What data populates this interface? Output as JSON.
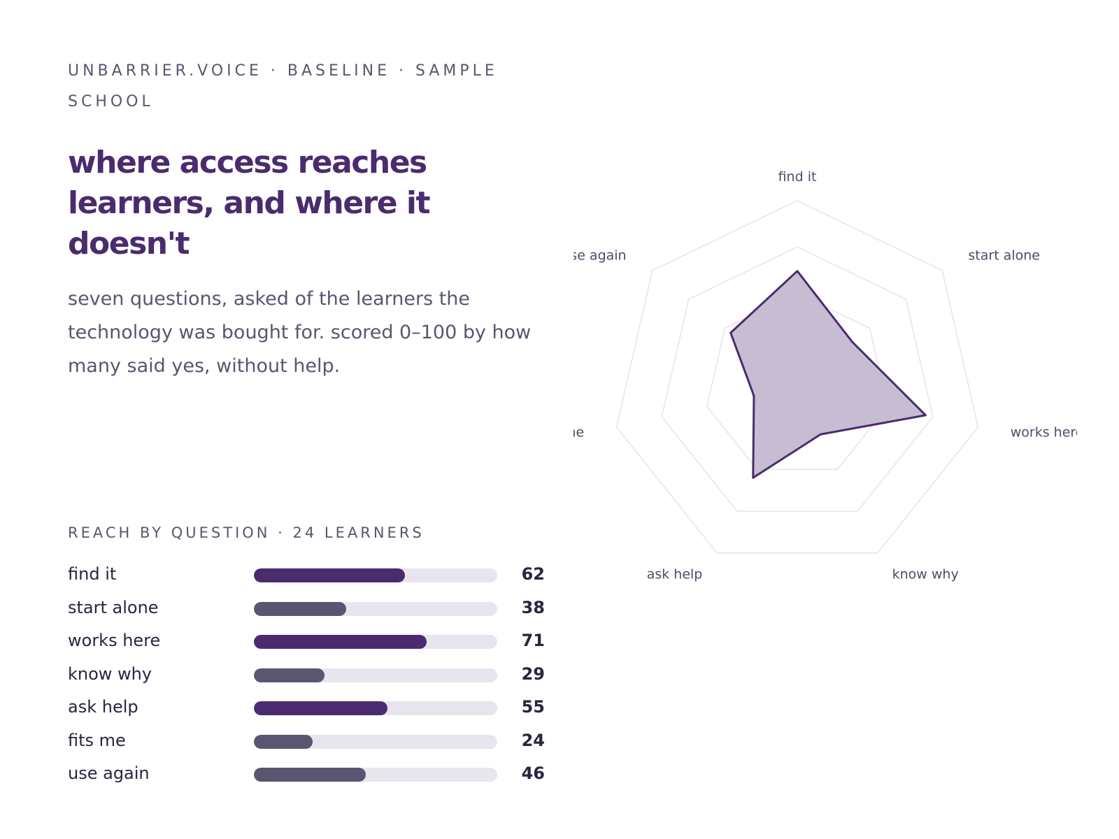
{
  "header": {
    "eyebrow": "UNBARRIER.VOICE · BASELINE · SAMPLE SCHOOL",
    "title": "where access reaches learners, and where it doesn't",
    "subtitle": "seven questions, asked of the learners the technology was bought for. scored 0–100 by how many said yes, without help."
  },
  "bars": {
    "section_label": "REACH BY QUESTION · 24 LEARNERS",
    "rows": [
      {
        "label": "find it",
        "value": "62"
      },
      {
        "label": "start alone",
        "value": "38"
      },
      {
        "label": "works here",
        "value": "71"
      },
      {
        "label": "know why",
        "value": "29"
      },
      {
        "label": "ask help",
        "value": "55"
      },
      {
        "label": "fits me",
        "value": "24"
      },
      {
        "label": "use again",
        "value": "46"
      }
    ]
  },
  "colors": {
    "accent": "#4a2c6e",
    "muted": "#5a5570",
    "track": "#e8e5ef",
    "radar_fill": "#c3b9d1",
    "grid": "#e6e3ea"
  },
  "chart_data": [
    {
      "type": "bar",
      "categories": [
        "find it",
        "start alone",
        "works here",
        "know why",
        "ask help",
        "fits me",
        "use again"
      ],
      "values": [
        62,
        38,
        71,
        29,
        55,
        24,
        46
      ],
      "bar_colors": [
        "#4a2c6e",
        "#5a5570",
        "#4a2c6e",
        "#5a5570",
        "#4a2c6e",
        "#5a5570",
        "#5a5570"
      ],
      "ylim": [
        0,
        100
      ]
    },
    {
      "type": "radar",
      "axes": [
        "find it",
        "start alone",
        "works here",
        "know why",
        "ask help",
        "fits me",
        "use again"
      ],
      "values": [
        62,
        38,
        71,
        29,
        55,
        24,
        46
      ],
      "range": [
        0,
        100
      ],
      "grid_levels": [
        25,
        50,
        75,
        100
      ]
    }
  ]
}
